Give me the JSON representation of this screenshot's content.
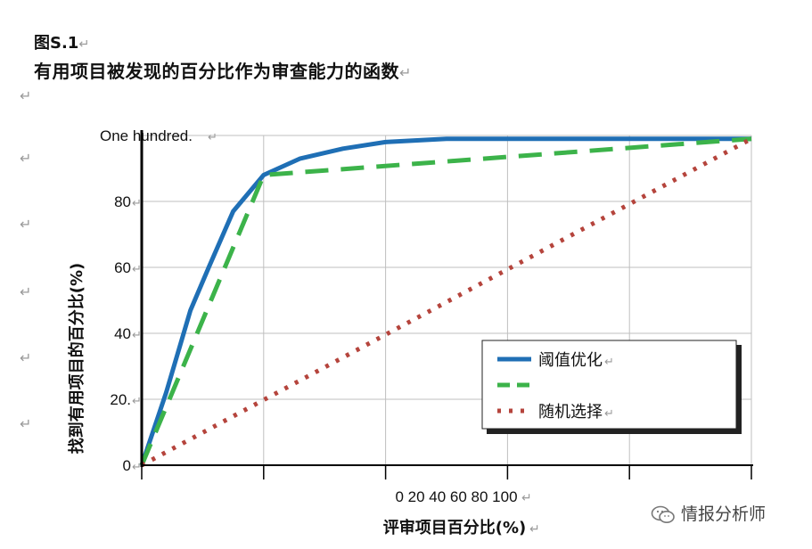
{
  "figure": {
    "label": "图S.1",
    "title": "有用项目被发现的百分比作为审查能力的函数",
    "return_mark": "↵"
  },
  "watermark": {
    "text": "情报分析师",
    "icon": "wechat-icon"
  },
  "chart_data": {
    "type": "line",
    "title": "有用项目被发现的百分比作为审查能力的函数",
    "xlabel": "评审项目百分比(%)",
    "ylabel": "找到有用项目的百分比(%)",
    "x_tick_text": "0 20 40 60 80 100",
    "y_tick_labels": [
      "0",
      "20.",
      "40",
      "60",
      "80",
      "One hundred."
    ],
    "y_ticks": [
      0,
      20,
      40,
      60,
      80,
      100
    ],
    "xlim": [
      0,
      100
    ],
    "ylim": [
      0,
      100
    ],
    "grid": true,
    "legend_position": "bottom-right",
    "series": [
      {
        "name": "阈值优化",
        "style": "solid",
        "color": "#1f6fb5",
        "x": [
          0,
          4,
          8,
          11,
          15,
          20,
          26,
          33,
          40,
          50,
          60,
          70,
          80,
          90,
          100
        ],
        "y": [
          0,
          22,
          47,
          60,
          77,
          88,
          93,
          96,
          98,
          99,
          99,
          99,
          99,
          99,
          99
        ]
      },
      {
        "name": "",
        "style": "dashed",
        "color": "#3cb34a",
        "x": [
          0,
          20,
          100
        ],
        "y": [
          0,
          88,
          99
        ]
      },
      {
        "name": "随机选择",
        "style": "dotted",
        "color": "#b5443c",
        "x": [
          0,
          100
        ],
        "y": [
          0,
          99
        ]
      }
    ]
  },
  "colors": {
    "grid": "#bfbfbf",
    "axis": "#000000",
    "return_mark": "#9a9a9a"
  }
}
